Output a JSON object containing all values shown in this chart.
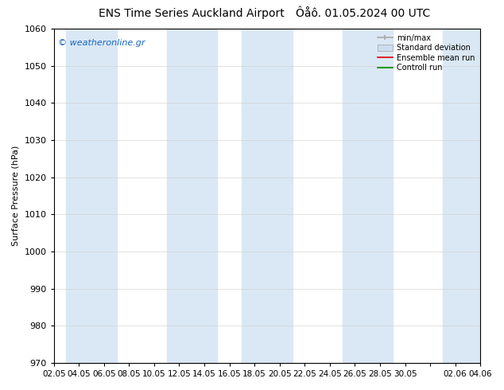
{
  "title_left": "ENS Time Series Auckland Airport",
  "title_right": "Ôåô. 01.05.2024 00 UTC",
  "ylabel": "Surface Pressure (hPa)",
  "ylim": [
    970,
    1060
  ],
  "yticks": [
    970,
    980,
    990,
    1000,
    1010,
    1020,
    1030,
    1040,
    1050,
    1060
  ],
  "xtick_labels": [
    "02.05",
    "04.05",
    "06.05",
    "08.05",
    "10.05",
    "12.05",
    "14.05",
    "16.05",
    "18.05",
    "20.05",
    "22.05",
    "24.05",
    "26.05",
    "28.05",
    "30.05",
    "",
    "02.06",
    "04.06"
  ],
  "watermark": "© weatheronline.gr",
  "legend_items": [
    "min/max",
    "Standard deviation",
    "Ensemble mean run",
    "Controll run"
  ],
  "band_color": "#dae8f5",
  "background_color": "#ffffff",
  "plot_bg_color": "#ffffff",
  "band_start_indices": [
    1,
    5,
    8,
    12,
    16
  ],
  "band_end_indices": [
    3,
    7,
    10,
    14,
    18
  ],
  "figsize": [
    6.34,
    4.9
  ],
  "dpi": 100,
  "title_fontsize": 10,
  "ytick_fontsize": 8,
  "xtick_fontsize": 7.5,
  "ylabel_fontsize": 8
}
